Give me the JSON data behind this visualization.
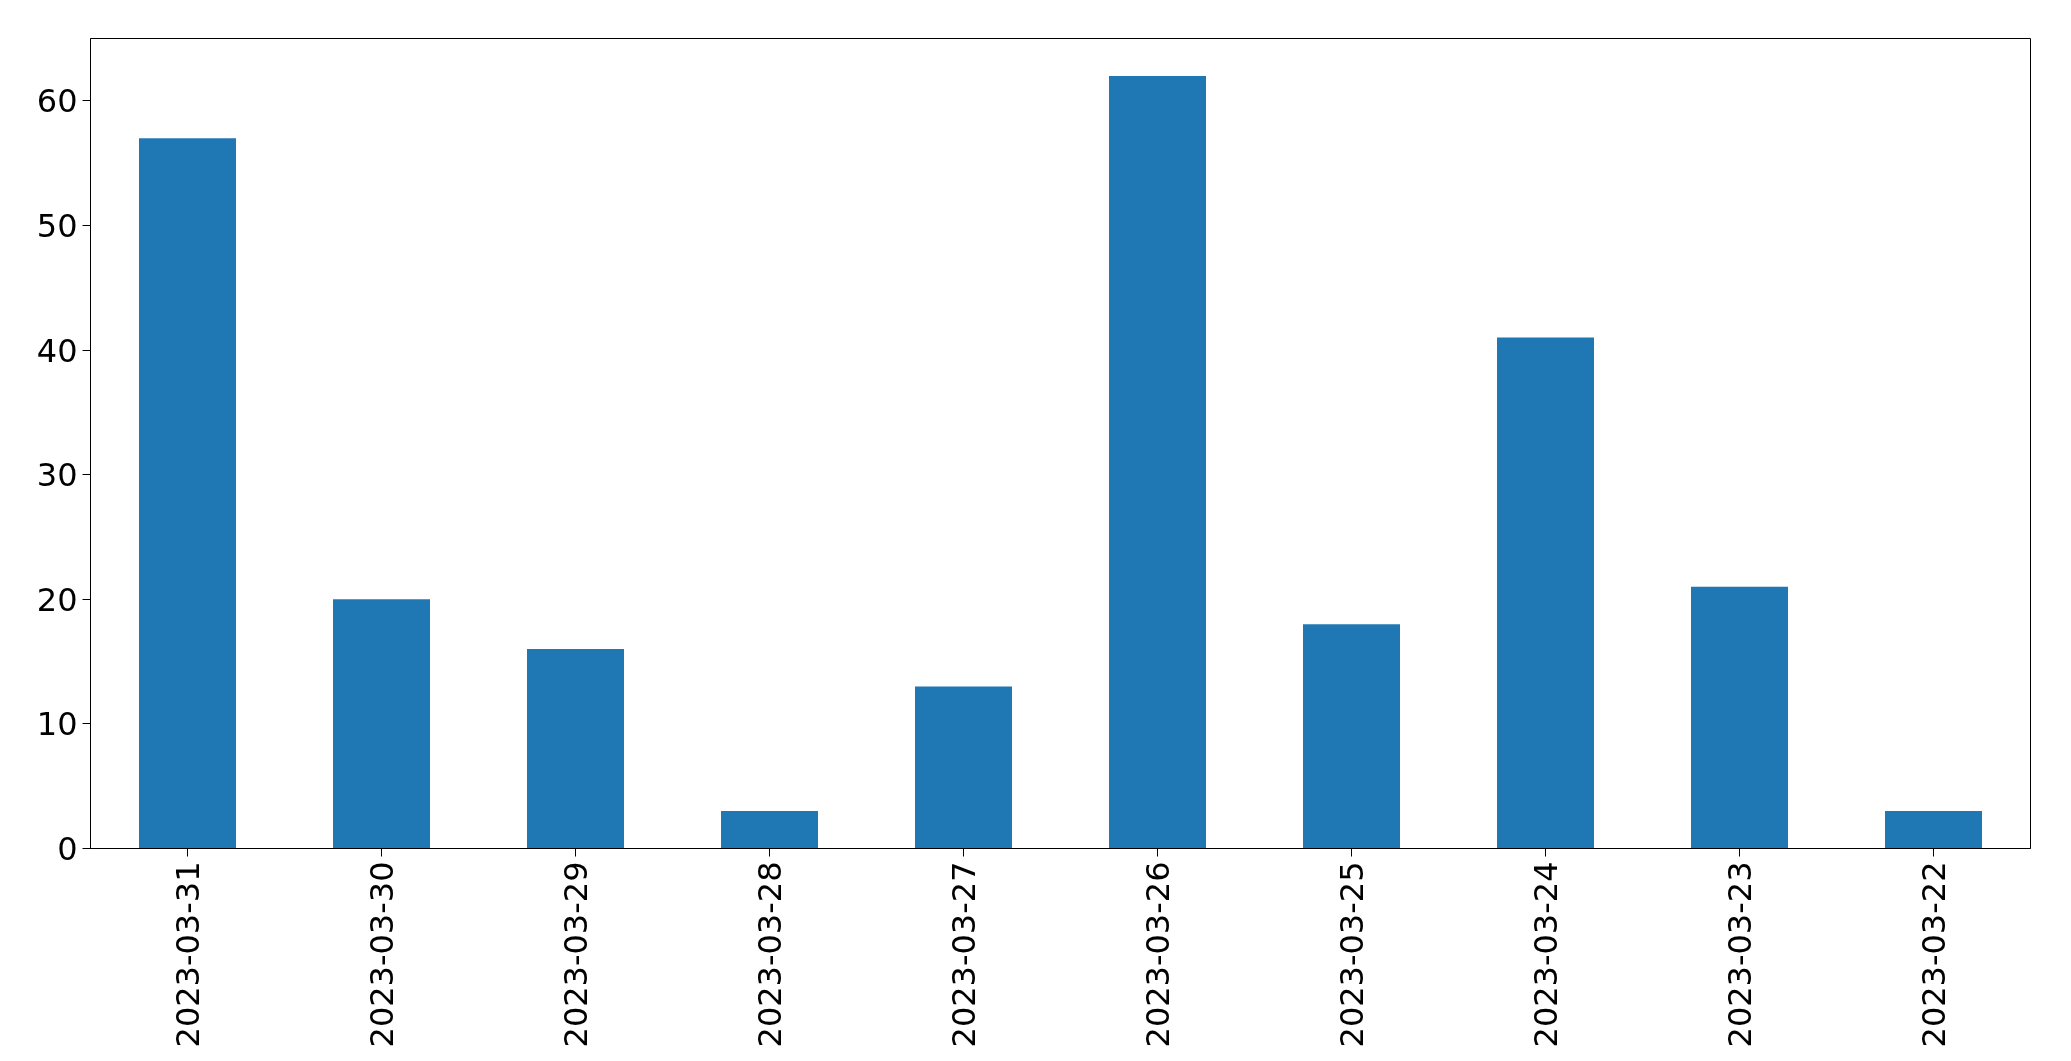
{
  "chart_data": {
    "type": "bar",
    "categories": [
      "2023-03-31",
      "2023-03-30",
      "2023-03-29",
      "2023-03-28",
      "2023-03-27",
      "2023-03-26",
      "2023-03-25",
      "2023-03-24",
      "2023-03-23",
      "2023-03-22"
    ],
    "values": [
      57,
      20,
      16,
      3,
      13,
      62,
      18,
      41,
      21,
      3
    ],
    "color": "#1f77b4",
    "ylim": [
      0,
      65
    ],
    "yticks": [
      0,
      10,
      20,
      30,
      40,
      50,
      60
    ],
    "grid": false
  }
}
